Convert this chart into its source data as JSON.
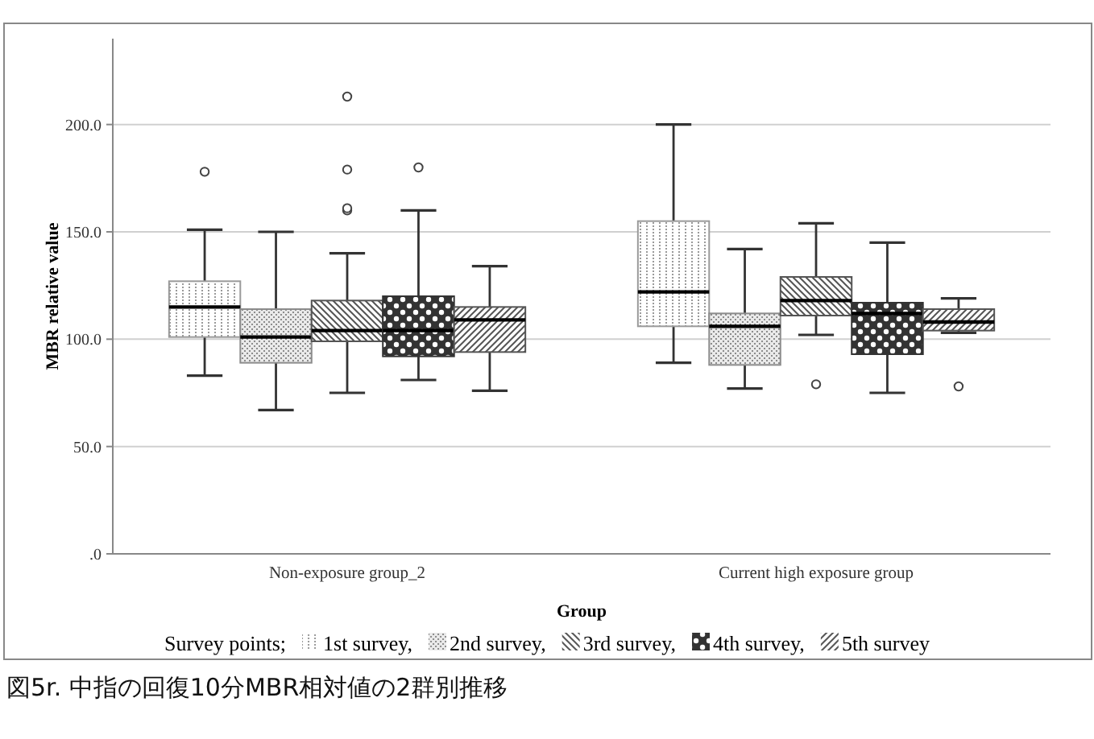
{
  "chart_data": {
    "type": "box",
    "xlabel": "Group",
    "ylabel": "MBR relative value",
    "legend_title": "Survey points;",
    "categories": [
      "Non-exposure group_2",
      "Current high exposure group"
    ],
    "ylim": [
      0,
      240
    ],
    "yticks": [
      {
        "value": 0,
        "label": ".0"
      },
      {
        "value": 50,
        "label": "50.0"
      },
      {
        "value": 100,
        "label": "100.0"
      },
      {
        "value": 150,
        "label": "150.0"
      },
      {
        "value": 200,
        "label": "200.0"
      }
    ],
    "grid": "y",
    "legend": "bottom",
    "series": [
      {
        "name": "1st survey,",
        "color": "#9a9a9a",
        "boxes": [
          {
            "low": 83,
            "q1": 101,
            "median": 115,
            "q3": 127,
            "high": 151,
            "outliers": [
              178
            ]
          },
          {
            "low": 89,
            "q1": 106,
            "median": 122,
            "q3": 155,
            "high": 200
          }
        ]
      },
      {
        "name": "2nd survey,",
        "color": "#8c8c8c",
        "boxes": [
          {
            "low": 67,
            "q1": 89,
            "median": 101,
            "q3": 114,
            "high": 150
          },
          {
            "low": 77,
            "q1": 88,
            "median": 106,
            "q3": 112,
            "high": 142
          }
        ]
      },
      {
        "name": "3rd survey,",
        "color": "#555555",
        "boxes": [
          {
            "low": 75,
            "q1": 99,
            "median": 104,
            "q3": 118,
            "high": 140,
            "outliers": [
              160,
              161,
              179,
              213
            ]
          },
          {
            "low": 102,
            "q1": 111,
            "median": 118,
            "q3": 129,
            "high": 154,
            "outliers": [
              79
            ]
          }
        ]
      },
      {
        "name": "4th survey,",
        "color": "#333333",
        "boxes": [
          {
            "low": 81,
            "q1": 92,
            "median": 104,
            "q3": 120,
            "high": 160,
            "outliers": [
              180
            ]
          },
          {
            "low": 75,
            "q1": 93,
            "median": 112,
            "q3": 117,
            "high": 145
          }
        ]
      },
      {
        "name": "5th survey",
        "color": "#555555",
        "boxes": [
          {
            "low": 76,
            "q1": 94,
            "median": 109,
            "q3": 115,
            "high": 134
          },
          {
            "low": 103,
            "q1": 104,
            "median": 108,
            "q3": 114,
            "high": 119,
            "outliers": [
              78
            ]
          }
        ]
      }
    ],
    "annotations": [
      "図5r.  中指の回復10分MBR相対値の2群別推移"
    ]
  }
}
